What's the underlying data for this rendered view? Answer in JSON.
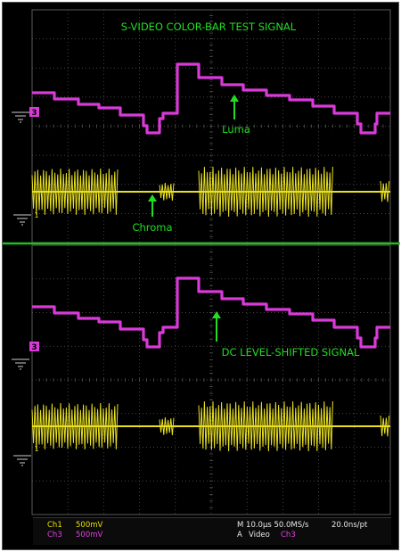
{
  "title": "S-VIDEO COLOR-BAR TEST SIGNAL",
  "annotations": {
    "luma": "Luma",
    "chroma": "Chroma",
    "dc_shift": "DC LEVEL-SHIFTED SIGNAL"
  },
  "markers": {
    "ch3": "3",
    "ch1": "1"
  },
  "status": {
    "ch1_label": "Ch1",
    "ch1_scale": "500mV",
    "ch3_label": "Ch3",
    "ch3_scale": "500mV",
    "timebase": "M 10.0µs 50.0MS/s",
    "resolution": "20.0ns/pt",
    "trigger_mode": "A",
    "trigger_type": "Video",
    "trigger_source": "Ch3"
  },
  "colors": {
    "luma_trace": "#d93ad9",
    "chroma_trace": "#e8e020",
    "annotation": "#22dd22",
    "divider": "#22bb22",
    "grid": "#5a5a5a",
    "background": "#000000"
  }
}
